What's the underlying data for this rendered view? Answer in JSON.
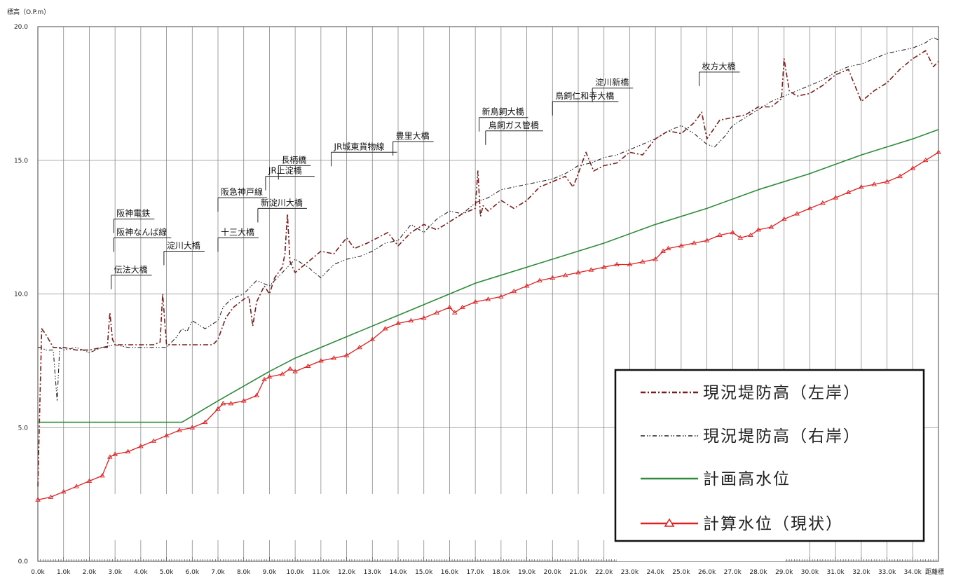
{
  "chart_data": {
    "type": "line",
    "ylabel": "標高（O.P.m）",
    "xlabel": "距離標",
    "xlim": [
      0,
      35
    ],
    "ylim": [
      0,
      20
    ],
    "x_ticks": [
      "0.0k",
      "1.0k",
      "2.0k",
      "3.0k",
      "4.0k",
      "5.0k",
      "6.0k",
      "7.0k",
      "8.0k",
      "9.0k",
      "10.0k",
      "11.0k",
      "12.0k",
      "13.0k",
      "14.0k",
      "15.0k",
      "16.0k",
      "17.0k",
      "18.0k",
      "19.0k",
      "20.0k",
      "21.0k",
      "22.0k",
      "23.0k",
      "24.0k",
      "25.0k",
      "26.0k",
      "27.0k",
      "28.0k",
      "29.0k",
      "30.0k",
      "31.0k",
      "32.0k",
      "33.0k",
      "34.0k"
    ],
    "y_ticks": [
      "0.0",
      "5.0",
      "10.0",
      "15.0",
      "20.0"
    ],
    "grid": true,
    "legend_position": "bottom-right",
    "series": [
      {
        "name": "現況堤防高（左岸）",
        "color": "#7a1d1d",
        "style": "dash-dot",
        "x": [
          0.0,
          0.15,
          0.3,
          0.6,
          1.0,
          1.5,
          2.0,
          2.5,
          2.7,
          2.8,
          2.9,
          3.0,
          3.5,
          4.0,
          4.5,
          4.75,
          4.85,
          5.0,
          5.3,
          6.0,
          6.8,
          7.0,
          7.3,
          7.6,
          8.0,
          8.2,
          8.35,
          8.5,
          8.8,
          9.0,
          9.2,
          9.5,
          9.6,
          9.7,
          9.8,
          10.0,
          10.5,
          11.0,
          11.5,
          12.0,
          12.3,
          12.8,
          13.2,
          13.6,
          14.0,
          14.5,
          15.0,
          15.5,
          16.0,
          16.5,
          17.0,
          17.1,
          17.2,
          17.3,
          17.5,
          18.0,
          18.5,
          19.0,
          19.5,
          20.0,
          20.5,
          20.8,
          21.0,
          21.3,
          21.6,
          22.0,
          22.5,
          23.0,
          23.5,
          24.0,
          24.5,
          25.0,
          25.5,
          25.8,
          26.0,
          26.5,
          27.0,
          27.5,
          28.0,
          28.5,
          28.9,
          29.0,
          29.2,
          29.5,
          30.0,
          30.5,
          31.0,
          31.5,
          32.0,
          32.5,
          33.0,
          33.5,
          34.0,
          34.5,
          34.8,
          35.0
        ],
        "y": [
          2.8,
          8.7,
          8.5,
          8.0,
          8.0,
          7.9,
          7.9,
          8.0,
          8.0,
          9.3,
          8.3,
          8.1,
          8.1,
          8.1,
          8.1,
          8.2,
          10.0,
          8.1,
          8.1,
          8.1,
          8.1,
          8.3,
          9.1,
          9.5,
          9.8,
          9.9,
          8.8,
          9.7,
          10.3,
          10.0,
          10.6,
          11.0,
          11.5,
          13.0,
          11.2,
          10.8,
          11.2,
          11.6,
          11.5,
          12.1,
          11.7,
          11.9,
          12.1,
          12.3,
          11.8,
          12.3,
          12.6,
          12.4,
          12.7,
          13.0,
          13.2,
          14.6,
          12.9,
          13.3,
          13.1,
          13.5,
          13.2,
          13.5,
          14.0,
          14.2,
          14.4,
          14.0,
          14.5,
          15.3,
          14.6,
          14.8,
          14.9,
          15.3,
          15.2,
          15.8,
          16.1,
          16.0,
          16.4,
          16.8,
          15.8,
          16.5,
          16.6,
          16.7,
          17.0,
          17.0,
          17.3,
          18.8,
          17.6,
          17.4,
          17.5,
          17.8,
          18.2,
          18.4,
          17.2,
          17.6,
          17.9,
          18.4,
          18.8,
          19.1,
          18.5,
          18.7
        ]
      },
      {
        "name": "現況堤防高（右岸）",
        "color": "#222222",
        "style": "dash-dot-dot",
        "x": [
          0.0,
          0.15,
          0.3,
          0.6,
          0.75,
          0.85,
          1.0,
          1.5,
          2.0,
          2.5,
          3.0,
          3.5,
          4.0,
          4.5,
          5.0,
          5.4,
          5.6,
          5.8,
          6.0,
          6.5,
          7.0,
          7.2,
          7.5,
          8.0,
          8.5,
          9.0,
          9.5,
          10.0,
          10.5,
          11.0,
          11.5,
          12.0,
          12.5,
          13.0,
          13.5,
          14.0,
          14.5,
          15.0,
          15.5,
          16.0,
          16.5,
          17.0,
          17.2,
          17.5,
          18.0,
          18.5,
          19.0,
          19.5,
          20.0,
          20.5,
          21.0,
          21.5,
          22.0,
          22.5,
          23.0,
          23.5,
          24.0,
          24.5,
          25.0,
          25.5,
          26.0,
          26.3,
          26.7,
          27.0,
          27.5,
          28.0,
          28.5,
          29.0,
          29.5,
          30.0,
          30.5,
          31.0,
          31.5,
          32.0,
          32.5,
          33.0,
          33.5,
          34.0,
          34.5,
          34.8,
          35.0
        ],
        "y": [
          8.0,
          8.0,
          7.9,
          7.9,
          6.0,
          8.0,
          7.9,
          8.0,
          7.8,
          8.0,
          8.1,
          8.0,
          8.0,
          8.0,
          8.0,
          8.4,
          8.7,
          8.6,
          9.0,
          8.7,
          9.0,
          9.5,
          9.8,
          10.0,
          10.5,
          10.3,
          10.8,
          11.3,
          11.0,
          10.6,
          11.1,
          11.3,
          11.4,
          11.6,
          11.9,
          12.0,
          12.6,
          12.3,
          12.8,
          13.1,
          13.0,
          13.4,
          13.5,
          13.6,
          13.9,
          14.0,
          14.1,
          14.2,
          14.3,
          14.5,
          14.8,
          14.9,
          15.1,
          15.2,
          15.4,
          15.6,
          15.8,
          16.1,
          16.3,
          16.0,
          15.6,
          15.5,
          15.9,
          16.3,
          16.6,
          16.9,
          17.2,
          17.4,
          17.6,
          17.8,
          18.0,
          18.3,
          18.5,
          18.6,
          18.8,
          19.0,
          19.1,
          19.2,
          19.4,
          19.6,
          19.5
        ]
      },
      {
        "name": "計画高水位",
        "color": "#2e8b3a",
        "style": "solid",
        "x": [
          0.0,
          5.6,
          7.0,
          9.0,
          10.0,
          12.0,
          14.0,
          16.0,
          17.0,
          20.0,
          22.0,
          24.0,
          26.0,
          28.0,
          30.0,
          32.0,
          34.0,
          35.0
        ],
        "y": [
          5.2,
          5.2,
          6.0,
          7.1,
          7.6,
          8.4,
          9.2,
          10.0,
          10.4,
          11.3,
          11.9,
          12.6,
          13.2,
          13.9,
          14.5,
          15.2,
          15.8,
          16.15
        ]
      },
      {
        "name": "計算水位（現状）",
        "color": "#e02020",
        "style": "solid-triangle",
        "x": [
          0.0,
          0.5,
          1.0,
          1.5,
          2.0,
          2.5,
          2.8,
          3.0,
          3.5,
          4.0,
          4.5,
          5.0,
          5.5,
          6.0,
          6.5,
          7.0,
          7.2,
          7.5,
          8.0,
          8.5,
          8.8,
          9.0,
          9.5,
          9.8,
          10.0,
          10.5,
          11.0,
          11.5,
          12.0,
          12.5,
          13.0,
          13.5,
          14.0,
          14.5,
          15.0,
          15.5,
          16.0,
          16.2,
          16.5,
          17.0,
          17.5,
          18.0,
          18.5,
          19.0,
          19.5,
          20.0,
          20.5,
          21.0,
          21.5,
          22.0,
          22.5,
          23.0,
          23.5,
          24.0,
          24.3,
          24.5,
          25.0,
          25.5,
          26.0,
          26.5,
          27.0,
          27.3,
          27.7,
          28.0,
          28.5,
          29.0,
          29.5,
          30.0,
          30.5,
          31.0,
          31.5,
          32.0,
          32.5,
          33.0,
          33.5,
          34.0,
          34.5,
          35.0
        ],
        "y": [
          2.3,
          2.4,
          2.6,
          2.8,
          3.0,
          3.2,
          3.9,
          4.0,
          4.1,
          4.3,
          4.5,
          4.7,
          4.9,
          5.0,
          5.2,
          5.7,
          5.9,
          5.9,
          6.0,
          6.2,
          6.8,
          6.9,
          7.0,
          7.2,
          7.1,
          7.3,
          7.5,
          7.6,
          7.7,
          8.0,
          8.3,
          8.7,
          8.9,
          9.0,
          9.1,
          9.3,
          9.5,
          9.3,
          9.5,
          9.7,
          9.8,
          9.9,
          10.1,
          10.3,
          10.5,
          10.6,
          10.7,
          10.8,
          10.9,
          11.0,
          11.1,
          11.1,
          11.2,
          11.3,
          11.6,
          11.7,
          11.8,
          11.9,
          12.0,
          12.2,
          12.3,
          12.1,
          12.2,
          12.4,
          12.5,
          12.8,
          13.0,
          13.2,
          13.4,
          13.6,
          13.8,
          14.0,
          14.1,
          14.2,
          14.4,
          14.7,
          15.0,
          15.3
        ]
      }
    ],
    "annotations": [
      {
        "label": "伝法大橋",
        "x": 2.85,
        "y": 10.7
      },
      {
        "label": "阪神電鉄",
        "x": 2.95,
        "y": 12.8
      },
      {
        "label": "阪神なんば線",
        "x": 2.95,
        "y": 12.1
      },
      {
        "label": "淀川大橋",
        "x": 4.9,
        "y": 11.6
      },
      {
        "label": "十三大橋",
        "x": 7.0,
        "y": 12.1
      },
      {
        "label": "阪急神戸線",
        "x": 7.0,
        "y": 13.6
      },
      {
        "label": "新淀川大橋",
        "x": 8.55,
        "y": 13.2
      },
      {
        "label": "JR上淀橋",
        "x": 8.85,
        "y": 14.4
      },
      {
        "label": "長柄橋",
        "x": 9.35,
        "y": 14.8
      },
      {
        "label": "JR城東貨物線",
        "x": 11.4,
        "y": 15.3
      },
      {
        "label": "豊里大橋",
        "x": 13.8,
        "y": 15.7
      },
      {
        "label": "新鳥飼大橋",
        "x": 17.15,
        "y": 16.6
      },
      {
        "label": "鳥飼ガス管橋",
        "x": 17.4,
        "y": 16.1
      },
      {
        "label": "鳥飼仁和寺大橋",
        "x": 20.0,
        "y": 17.2
      },
      {
        "label": "淀川新橋",
        "x": 21.55,
        "y": 17.7
      },
      {
        "label": "枚方大橋",
        "x": 25.7,
        "y": 18.3
      }
    ]
  }
}
